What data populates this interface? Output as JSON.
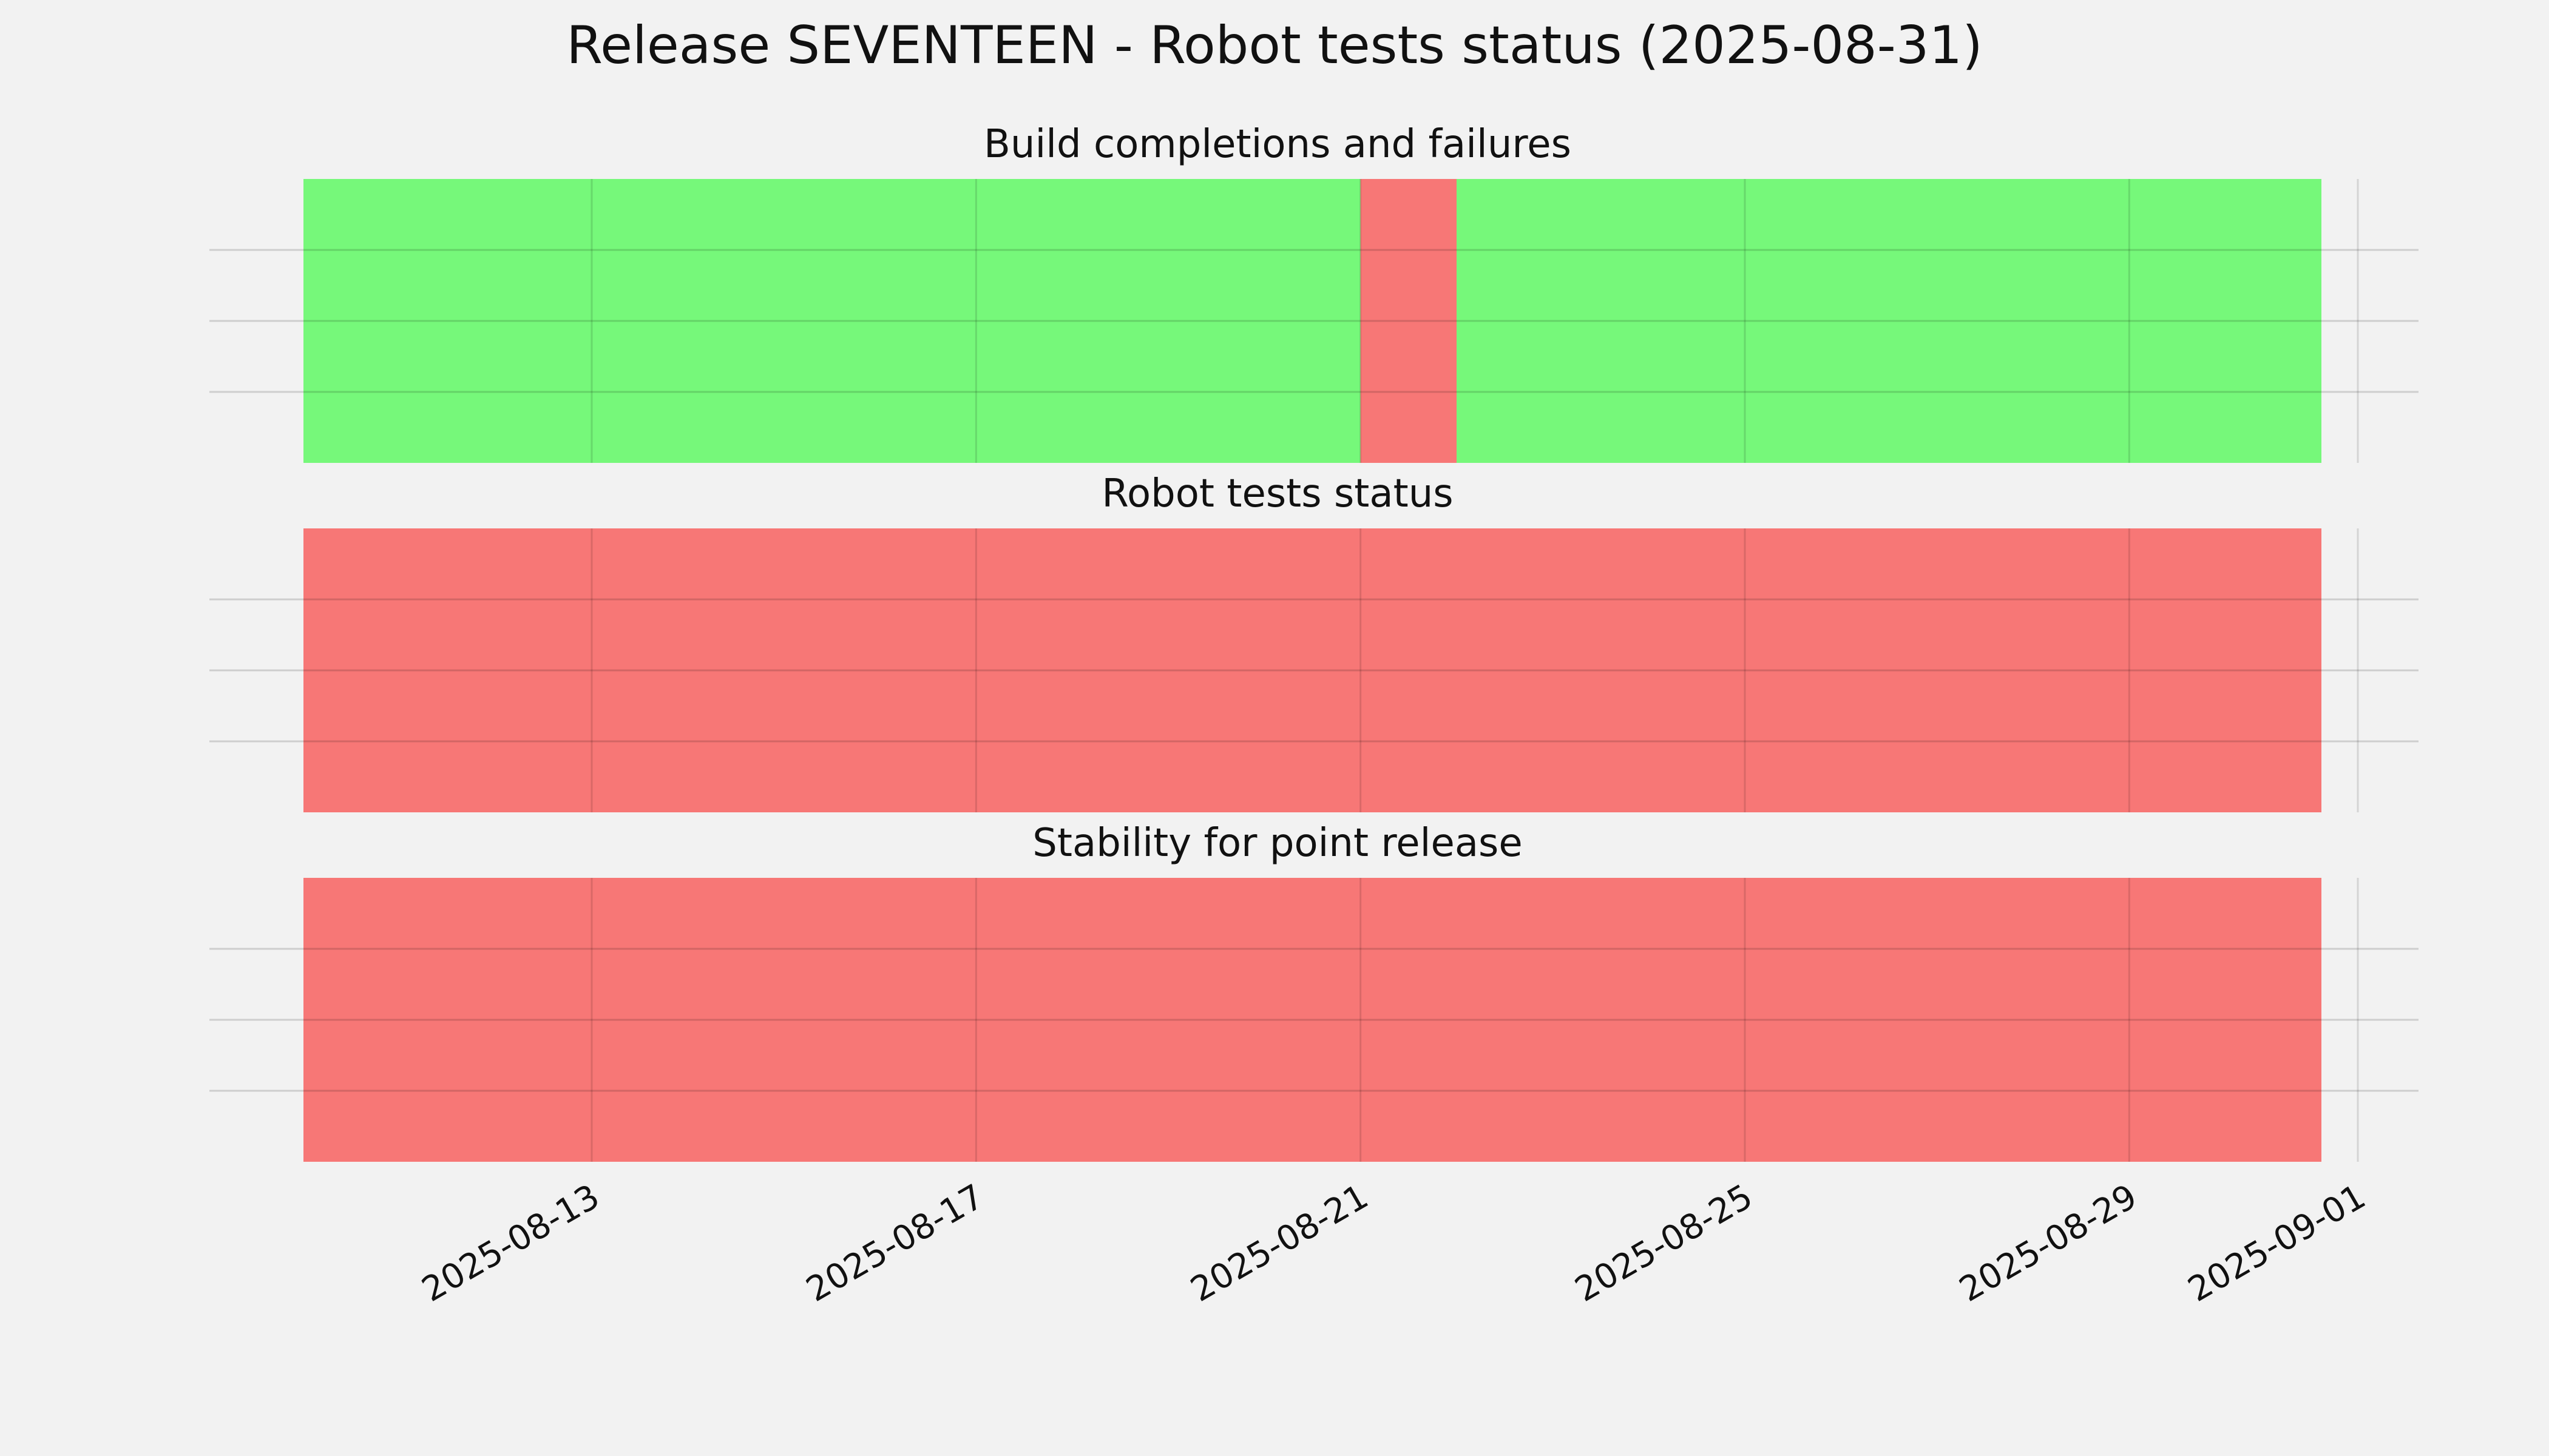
{
  "chart_data": {
    "type": "timeline",
    "title": "Release SEVENTEEN - Robot tests status (2025-08-31)",
    "x_range": [
      "2025-08-10",
      "2025-09-01"
    ],
    "x_ticks": [
      "2025-08-13",
      "2025-08-17",
      "2025-08-21",
      "2025-08-25",
      "2025-08-29",
      "2025-09-01"
    ],
    "grid": true,
    "legend": "none",
    "colors": {
      "pass": "#76f87a",
      "fail": "#f77776"
    },
    "panels": [
      {
        "title": "Build completions and failures",
        "segments": [
          {
            "start": "2025-08-10",
            "end": "2025-08-21",
            "status": "pass"
          },
          {
            "start": "2025-08-21",
            "end": "2025-08-22",
            "status": "fail"
          },
          {
            "start": "2025-08-22",
            "end": "2025-08-31",
            "status": "pass"
          }
        ]
      },
      {
        "title": "Robot tests status",
        "segments": [
          {
            "start": "2025-08-10",
            "end": "2025-08-31",
            "status": "fail"
          }
        ]
      },
      {
        "title": "Stability for point release",
        "segments": [
          {
            "start": "2025-08-10",
            "end": "2025-08-31",
            "status": "fail"
          }
        ]
      }
    ]
  }
}
